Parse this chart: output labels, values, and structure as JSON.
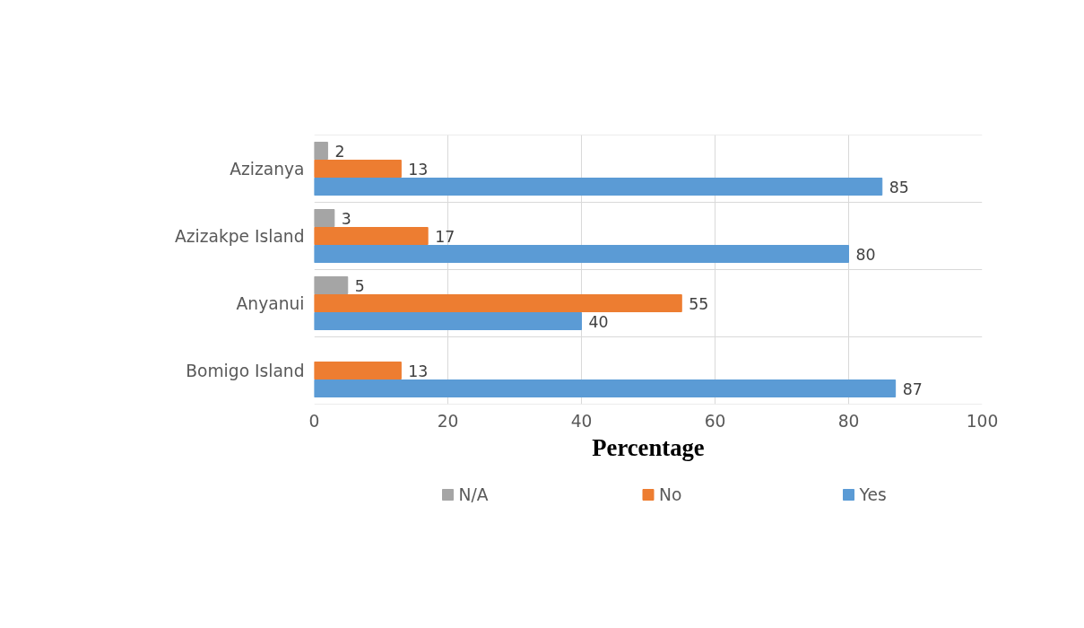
{
  "chart_data": {
    "type": "bar",
    "orientation": "horizontal",
    "xlabel": "Percentage",
    "categories": [
      "Azizanya",
      "Azizakpe Island",
      "Anyanui",
      "Bomigo Island"
    ],
    "series": [
      {
        "name": "N/A",
        "color": "#a5a5a5",
        "values": [
          2,
          3,
          5,
          null
        ]
      },
      {
        "name": "No",
        "color": "#ed7d31",
        "values": [
          13,
          17,
          55,
          13
        ]
      },
      {
        "name": "Yes",
        "color": "#5b9bd5",
        "values": [
          85,
          80,
          40,
          87
        ]
      }
    ],
    "xlim": [
      0,
      100
    ],
    "xticks": [
      0,
      20,
      40,
      60,
      80,
      100
    ],
    "grid": "x",
    "legend": "bottom",
    "data_labels": true
  }
}
